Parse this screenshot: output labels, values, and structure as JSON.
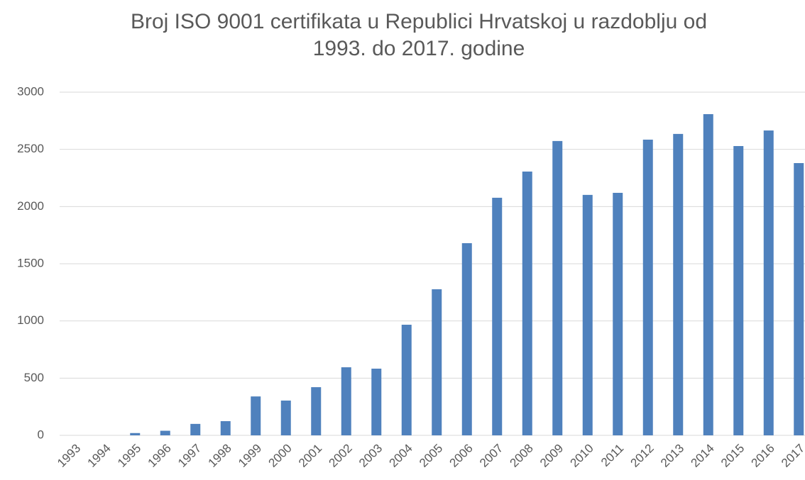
{
  "chart_data": {
    "type": "bar",
    "title": "Broj ISO 9001 certifikata u Republici Hrvatskoj u razdoblju od 1993. do 2017. godine",
    "categories": [
      "1993",
      "1994",
      "1995",
      "1996",
      "1997",
      "1998",
      "1999",
      "2000",
      "2001",
      "2002",
      "2003",
      "2004",
      "2005",
      "2006",
      "2007",
      "2008",
      "2009",
      "2010",
      "2011",
      "2012",
      "2013",
      "2014",
      "2015",
      "2016",
      "2017"
    ],
    "values": [
      0,
      0,
      20,
      40,
      100,
      124,
      340,
      304,
      421,
      595,
      583,
      967,
      1277,
      1680,
      2077,
      2306,
      2573,
      2102,
      2120,
      2585,
      2635,
      2808,
      2529,
      2665,
      2380
    ],
    "color": "#4f81bd",
    "ylim": [
      0,
      3000
    ],
    "yticks": [
      0,
      500,
      1000,
      1500,
      2000,
      2500,
      3000
    ],
    "grid": true
  }
}
